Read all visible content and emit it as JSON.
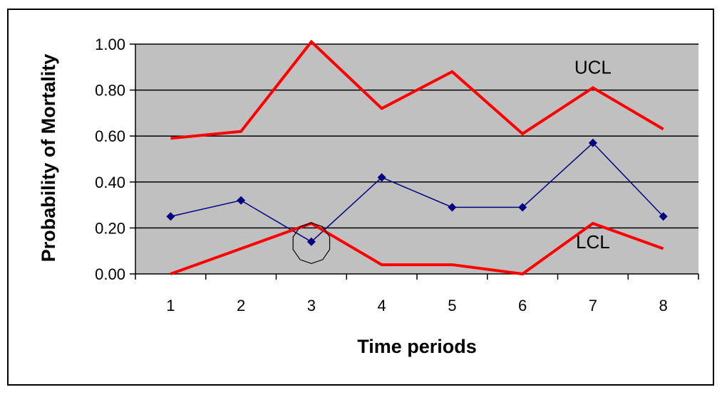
{
  "chart_data": {
    "type": "line",
    "title": "",
    "xlabel": "Time periods",
    "ylabel": "Probability of Mortality",
    "categories": [
      "1",
      "2",
      "3",
      "4",
      "5",
      "6",
      "7",
      "8"
    ],
    "ylim": [
      0,
      1
    ],
    "yticks": [
      "0.00",
      "0.20",
      "0.40",
      "0.60",
      "0.80",
      "1.00"
    ],
    "grid": true,
    "plot_background": "#c0c0c0",
    "series": [
      {
        "name": "UCL",
        "color": "#ff0000",
        "marker": "none",
        "values": [
          0.59,
          0.62,
          1.01,
          0.72,
          0.88,
          0.61,
          0.81,
          0.63
        ]
      },
      {
        "name": "",
        "color": "#000080",
        "marker": "diamond",
        "values": [
          0.25,
          0.32,
          0.14,
          0.42,
          0.29,
          0.29,
          0.57,
          0.25
        ]
      },
      {
        "name": "LCL",
        "color": "#ff0000",
        "marker": "none",
        "values": [
          0.0,
          0.11,
          0.22,
          0.04,
          0.04,
          0.0,
          0.22,
          0.11
        ]
      }
    ],
    "annotations": [
      {
        "text": "UCL",
        "x": "7",
        "y": 0.9
      },
      {
        "text": "LCL",
        "x": "7",
        "y": 0.14
      }
    ],
    "highlight": {
      "shape": "circle",
      "x": "3",
      "y": 0.14
    }
  }
}
